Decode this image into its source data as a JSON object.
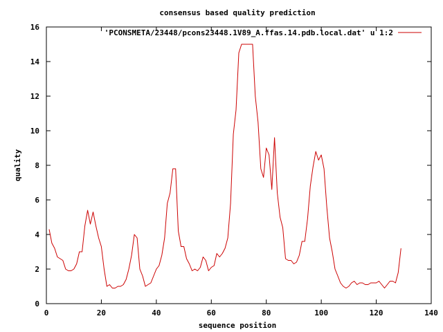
{
  "chart_data": {
    "type": "line",
    "title": "consensus based quality prediction",
    "xlabel": "sequence position",
    "ylabel": "quality",
    "xlim": [
      0,
      140
    ],
    "ylim": [
      0,
      16
    ],
    "xticks": [
      0,
      20,
      40,
      60,
      80,
      100,
      120,
      140
    ],
    "yticks": [
      0,
      2,
      4,
      6,
      8,
      10,
      12,
      14,
      16
    ],
    "legend_position": "top-right",
    "grid": false,
    "series": [
      {
        "name": "'PCONSMETA/23448/pcons23448.1V89_A.ffas.14.pdb.local.dat' u 1:2",
        "color": "#cc0000",
        "x": [
          1,
          2,
          3,
          4,
          5,
          6,
          7,
          8,
          9,
          10,
          11,
          12,
          13,
          14,
          15,
          16,
          17,
          18,
          19,
          20,
          21,
          22,
          23,
          24,
          25,
          26,
          27,
          28,
          29,
          30,
          31,
          32,
          33,
          34,
          35,
          36,
          37,
          38,
          39,
          40,
          41,
          42,
          43,
          44,
          45,
          46,
          47,
          48,
          49,
          50,
          51,
          52,
          53,
          54,
          55,
          56,
          57,
          58,
          59,
          60,
          61,
          62,
          63,
          64,
          65,
          66,
          67,
          68,
          69,
          70,
          71,
          72,
          73,
          74,
          75,
          76,
          77,
          78,
          79,
          80,
          81,
          82,
          83,
          84,
          85,
          86,
          87,
          88,
          89,
          90,
          91,
          92,
          93,
          94,
          95,
          96,
          97,
          98,
          99,
          100,
          101,
          102,
          103,
          104,
          105,
          106,
          107,
          108,
          109,
          110,
          111,
          112,
          113,
          114,
          115,
          116,
          117,
          118,
          119,
          120,
          121,
          122,
          123,
          124,
          125,
          126,
          127,
          128,
          129
        ],
        "y": [
          4.3,
          3.5,
          3.2,
          2.7,
          2.6,
          2.5,
          2.0,
          1.9,
          1.9,
          2.0,
          2.3,
          3.0,
          3.0,
          4.5,
          5.4,
          4.6,
          5.3,
          4.5,
          3.8,
          3.3,
          2.0,
          1.0,
          1.1,
          0.9,
          0.9,
          1.0,
          1.0,
          1.1,
          1.4,
          2.0,
          2.8,
          4.0,
          3.8,
          2.0,
          1.6,
          1.0,
          1.1,
          1.2,
          1.6,
          2.0,
          2.2,
          2.8,
          3.8,
          5.8,
          6.4,
          7.8,
          7.8,
          4.2,
          3.3,
          3.3,
          2.6,
          2.3,
          1.9,
          2.0,
          1.9,
          2.1,
          2.7,
          2.5,
          1.9,
          2.1,
          2.2,
          2.9,
          2.7,
          2.9,
          3.2,
          3.8,
          5.8,
          9.8,
          11.2,
          14.5,
          15.0,
          15.0,
          15.0,
          15.0,
          15.0,
          12.0,
          10.5,
          7.8,
          7.3,
          9.0,
          8.6,
          6.6,
          9.6,
          6.4,
          5.0,
          4.4,
          2.6,
          2.5,
          2.5,
          2.3,
          2.4,
          2.8,
          3.6,
          3.6,
          4.9,
          6.8,
          7.9,
          8.8,
          8.3,
          8.6,
          7.8,
          5.6,
          3.8,
          3.0,
          2.0,
          1.6,
          1.2,
          1.0,
          0.9,
          1.0,
          1.2,
          1.3,
          1.1,
          1.2,
          1.2,
          1.1,
          1.1,
          1.2,
          1.2,
          1.2,
          1.3,
          1.1,
          0.9,
          1.1,
          1.3,
          1.3,
          1.2,
          1.8,
          3.2
        ]
      }
    ]
  }
}
